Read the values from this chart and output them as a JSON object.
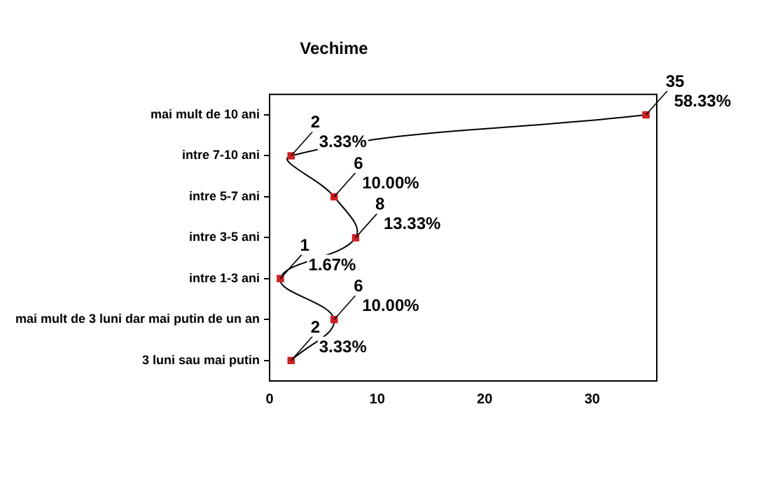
{
  "chart_data": {
    "type": "line",
    "title": "Vechime",
    "orientation": "horizontal",
    "categories": [
      "mai mult de 10 ani",
      "intre 7-10 ani",
      "intre 5-7 ani",
      "intre 3-5 ani",
      "intre 1-3 ani",
      "mai mult de 3 luni dar mai putin de un an",
      "3 luni sau mai putin"
    ],
    "values": [
      35,
      2,
      6,
      8,
      1,
      6,
      2
    ],
    "value_labels": [
      "35\n58.33%",
      "2\n3.33%",
      "6\n10.00%",
      "8\n13.33%",
      "1\n1.67%",
      "6\n10.00%",
      "2\n3.33%"
    ],
    "color": "#000000",
    "colors": [
      "#cc2222",
      "#cc2222",
      "#cc2222",
      "#cc2222",
      "#cc2222",
      "#cc2222",
      "#cc2222"
    ],
    "marker": "square",
    "xlim": [
      0,
      36
    ],
    "xticks": [
      0,
      10,
      20,
      30
    ],
    "grid": false,
    "legend": false
  }
}
